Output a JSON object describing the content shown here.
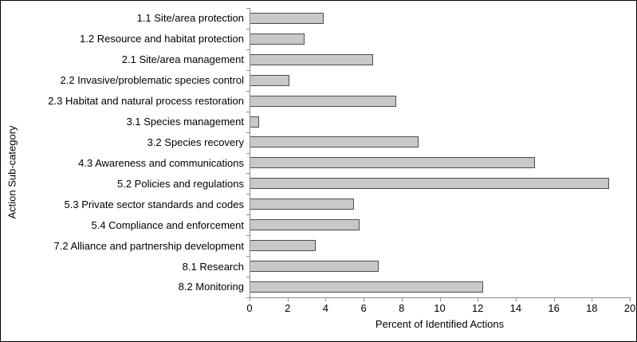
{
  "figure": {
    "background": "#ffffff",
    "frame_border_color": "#000000",
    "axis_color": "#8c8c8c",
    "bar_fill": "#c8c8c8",
    "bar_border": "#4d4d4d",
    "text_color": "#000000"
  },
  "chart_data": {
    "type": "bar",
    "orientation": "horizontal",
    "title": "",
    "categories": [
      "1.1 Site/area protection",
      "1.2 Resource and habitat protection",
      "2.1 Site/area management",
      "2.2 Invasive/problematic species control",
      "2.3 Habitat and natural process restoration",
      "3.1 Species management",
      "3.2 Species recovery",
      "4.3 Awareness and communications",
      "5.2 Policies and regulations",
      "5.3 Private sector standards and codes",
      "5.4 Compliance and enforcement",
      "7.2 Alliance and partnership development",
      "8.1 Research",
      "8.2 Monitoring"
    ],
    "values": [
      3.9,
      2.9,
      6.5,
      2.1,
      7.7,
      0.5,
      8.9,
      15.0,
      18.9,
      5.5,
      5.8,
      3.5,
      6.8,
      12.3
    ],
    "xlabel": "Percent of Identified Actions",
    "ylabel": "Action Sub-category",
    "xlim": [
      0,
      20
    ],
    "x_ticks": [
      0,
      2,
      4,
      6,
      8,
      10,
      12,
      14,
      16,
      18,
      20
    ],
    "grid": false,
    "legend": false
  }
}
